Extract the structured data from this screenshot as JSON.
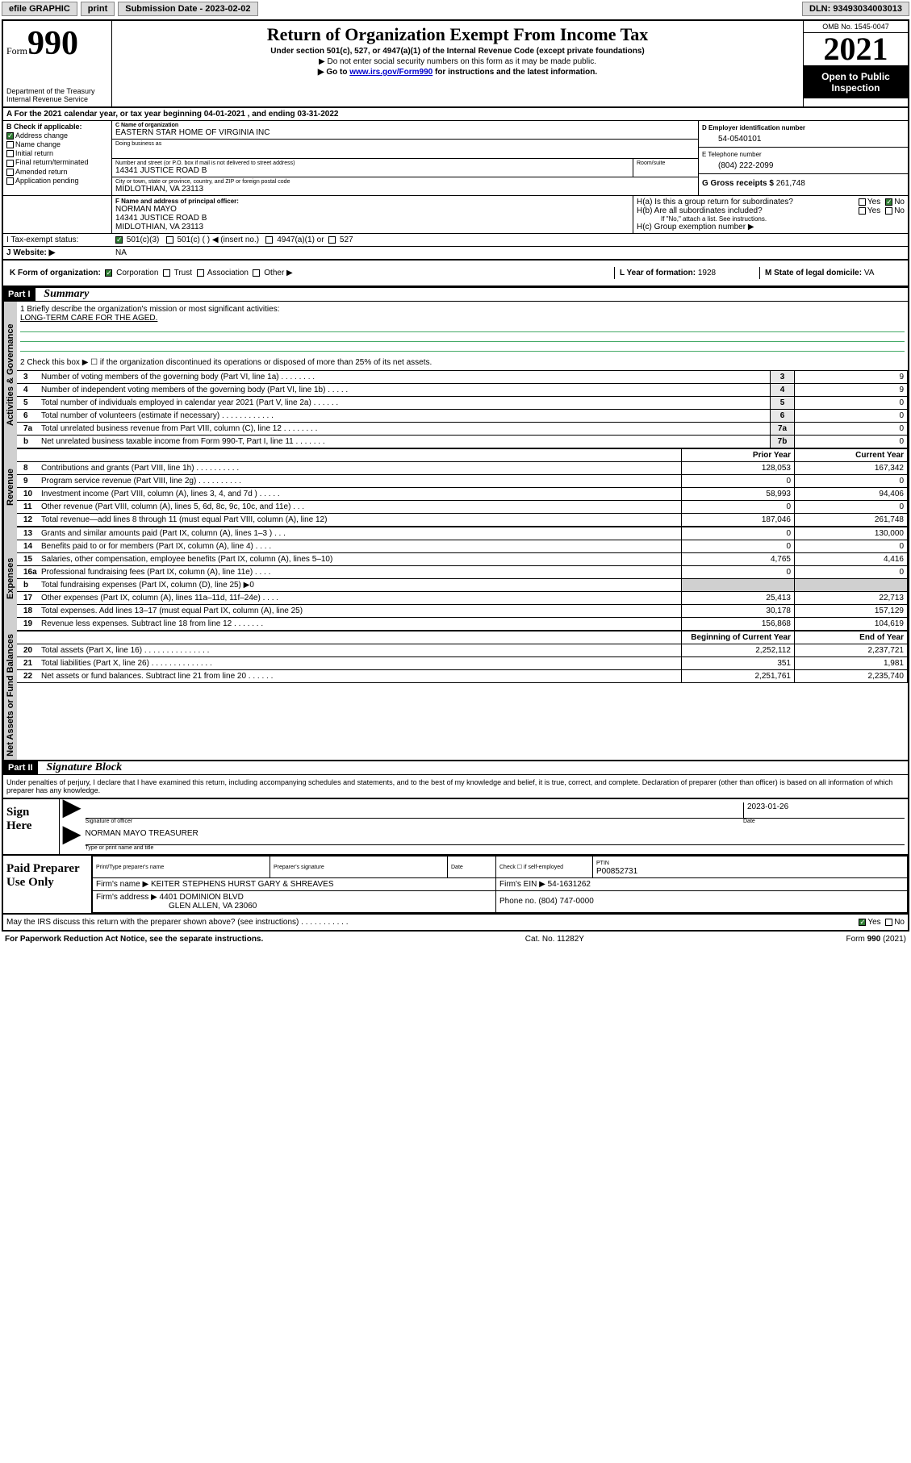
{
  "topbar": {
    "efile_label": "efile GRAPHIC",
    "print_label": "print",
    "submission_label": "Submission Date - 2023-02-02",
    "dln_label": "DLN: 93493034003013"
  },
  "header": {
    "form_prefix": "Form",
    "form_number": "990",
    "dept": "Department of the Treasury",
    "irs": "Internal Revenue Service",
    "title": "Return of Organization Exempt From Income Tax",
    "subtitle": "Under section 501(c), 527, or 4947(a)(1) of the Internal Revenue Code (except private foundations)",
    "note1": "▶ Do not enter social security numbers on this form as it may be made public.",
    "note2_a": "▶ Go to ",
    "note2_link": "www.irs.gov/Form990",
    "note2_b": " for instructions and the latest information.",
    "omb": "OMB No. 1545-0047",
    "year": "2021",
    "open_public": "Open to Public Inspection"
  },
  "line_a": {
    "prefix": "A For the 2021 calendar year, or tax year beginning ",
    "begin": "04-01-2021",
    "mid": " , and ending ",
    "end": "03-31-2022"
  },
  "box_b": {
    "title": "B Check if applicable:",
    "items": [
      {
        "label": "Address change",
        "checked": true
      },
      {
        "label": "Name change",
        "checked": false
      },
      {
        "label": "Initial return",
        "checked": false
      },
      {
        "label": "Final return/terminated",
        "checked": false
      },
      {
        "label": "Amended return",
        "checked": false
      },
      {
        "label": "Application pending",
        "checked": false
      }
    ]
  },
  "box_c": {
    "name_label": "C Name of organization",
    "name": "EASTERN STAR HOME OF VIRGINIA INC",
    "dba_label": "Doing business as",
    "dba": "",
    "street_label": "Number and street (or P.O. box if mail is not delivered to street address)",
    "room_label": "Room/suite",
    "street": "14341 JUSTICE ROAD B",
    "city_label": "City or town, state or province, country, and ZIP or foreign postal code",
    "city": "MIDLOTHIAN, VA  23113"
  },
  "box_d": {
    "label": "D Employer identification number",
    "value": "54-0540101"
  },
  "box_e": {
    "label": "E Telephone number",
    "value": "(804) 222-2099"
  },
  "box_g": {
    "label": "G Gross receipts $",
    "value": "261,748"
  },
  "box_f": {
    "label": "F Name and address of principal officer:",
    "name": "NORMAN MAYO",
    "street": "14341 JUSTICE ROAD B",
    "city": "MIDLOTHIAN, VA  23113"
  },
  "box_h": {
    "a_label": "H(a)  Is this a group return for subordinates?",
    "a_yes": "Yes",
    "a_no": "No",
    "a_val": "No",
    "b_label": "H(b)  Are all subordinates included?",
    "b_note": "If \"No,\" attach a list. See instructions.",
    "c_label": "H(c)  Group exemption number ▶"
  },
  "box_i": {
    "label": "I    Tax-exempt status:",
    "opt1": "501(c)(3)",
    "opt2": "501(c) (   ) ◀ (insert no.)",
    "opt3": "4947(a)(1) or",
    "opt4": "527",
    "checked": "501(c)(3)"
  },
  "box_j": {
    "label": "J   Website: ▶",
    "value": "NA"
  },
  "box_k": {
    "label": "K Form of organization:",
    "opts": [
      "Corporation",
      "Trust",
      "Association",
      "Other ▶"
    ],
    "checked": "Corporation"
  },
  "box_l": {
    "label": "L Year of formation:",
    "value": "1928"
  },
  "box_m": {
    "label": "M State of legal domicile:",
    "value": "VA"
  },
  "part1": {
    "part_label": "Part I",
    "title": "Summary",
    "q1_label": "1   Briefly describe the organization's mission or most significant activities:",
    "q1_value": "LONG-TERM CARE FOR THE AGED.",
    "q2_label": "2   Check this box ▶ ☐  if the organization discontinued its operations or disposed of more than 25% of its net assets.",
    "side_gov": "Activities & Governance",
    "side_rev": "Revenue",
    "side_exp": "Expenses",
    "side_net": "Net Assets or Fund Balances",
    "hdr_prior": "Prior Year",
    "hdr_curr": "Current Year",
    "hdr_beg": "Beginning of Current Year",
    "hdr_end": "End of Year",
    "rows_gov": [
      {
        "n": "3",
        "t": "Number of voting members of the governing body (Part VI, line 1a)   .    .    .    .    .    .    .    .",
        "c": "3",
        "v": "9"
      },
      {
        "n": "4",
        "t": "Number of independent voting members of the governing body (Part VI, line 1b)   .    .    .    .    .",
        "c": "4",
        "v": "9"
      },
      {
        "n": "5",
        "t": "Total number of individuals employed in calendar year 2021 (Part V, line 2a)   .    .    .    .    .    .",
        "c": "5",
        "v": "0"
      },
      {
        "n": "6",
        "t": "Total number of volunteers (estimate if necessary)   .    .    .    .    .    .    .    .    .    .    .    .",
        "c": "6",
        "v": "0"
      },
      {
        "n": "7a",
        "t": "Total unrelated business revenue from Part VIII, column (C), line 12   .    .    .    .    .    .    .    .",
        "c": "7a",
        "v": "0"
      },
      {
        "n": "b",
        "t": "Net unrelated business taxable income from Form 990-T, Part I, line 11   .    .    .    .    .    .    .",
        "c": "7b",
        "v": "0"
      }
    ],
    "rows_rev": [
      {
        "n": "8",
        "t": "Contributions and grants (Part VIII, line 1h)   .    .    .    .    .    .    .    .    .    .",
        "p": "128,053",
        "c": "167,342"
      },
      {
        "n": "9",
        "t": "Program service revenue (Part VIII, line 2g)   .    .    .    .    .    .    .    .    .    .",
        "p": "0",
        "c": "0"
      },
      {
        "n": "10",
        "t": "Investment income (Part VIII, column (A), lines 3, 4, and 7d )   .    .    .    .    .",
        "p": "58,993",
        "c": "94,406"
      },
      {
        "n": "11",
        "t": "Other revenue (Part VIII, column (A), lines 5, 6d, 8c, 9c, 10c, and 11e)  .    .    .",
        "p": "0",
        "c": "0"
      },
      {
        "n": "12",
        "t": "Total revenue—add lines 8 through 11 (must equal Part VIII, column (A), line 12)",
        "p": "187,046",
        "c": "261,748"
      }
    ],
    "rows_exp": [
      {
        "n": "13",
        "t": "Grants and similar amounts paid (Part IX, column (A), lines 1–3 )   .    .    .",
        "p": "0",
        "c": "130,000"
      },
      {
        "n": "14",
        "t": "Benefits paid to or for members (Part IX, column (A), line 4)   .    .    .    .",
        "p": "0",
        "c": "0"
      },
      {
        "n": "15",
        "t": "Salaries, other compensation, employee benefits (Part IX, column (A), lines 5–10)",
        "p": "4,765",
        "c": "4,416"
      },
      {
        "n": "16a",
        "t": "Professional fundraising fees (Part IX, column (A), line 11e)   .    .    .    .",
        "p": "0",
        "c": "0"
      },
      {
        "n": "b",
        "t": "Total fundraising expenses (Part IX, column (D), line 25) ▶0",
        "p": "shade",
        "c": "shade"
      },
      {
        "n": "17",
        "t": "Other expenses (Part IX, column (A), lines 11a–11d, 11f–24e)   .    .    .    .",
        "p": "25,413",
        "c": "22,713"
      },
      {
        "n": "18",
        "t": "Total expenses. Add lines 13–17 (must equal Part IX, column (A), line 25)",
        "p": "30,178",
        "c": "157,129"
      },
      {
        "n": "19",
        "t": "Revenue less expenses. Subtract line 18 from line 12   .    .    .    .    .    .    .",
        "p": "156,868",
        "c": "104,619"
      }
    ],
    "rows_net": [
      {
        "n": "20",
        "t": "Total assets (Part X, line 16)   .    .    .    .    .    .    .    .    .    .    .    .    .    .    .",
        "p": "2,252,112",
        "c": "2,237,721"
      },
      {
        "n": "21",
        "t": "Total liabilities (Part X, line 26)   .    .    .    .    .    .    .    .    .    .    .    .    .    .",
        "p": "351",
        "c": "1,981"
      },
      {
        "n": "22",
        "t": "Net assets or fund balances. Subtract line 21 from line 20   .    .    .    .    .    .",
        "p": "2,251,761",
        "c": "2,235,740"
      }
    ]
  },
  "part2": {
    "part_label": "Part II",
    "title": "Signature Block",
    "decl": "Under penalties of perjury, I declare that I have examined this return, including accompanying schedules and statements, and to the best of my knowledge and belief, it is true, correct, and complete. Declaration of preparer (other than officer) is based on all information of which preparer has any knowledge.",
    "sign_here": "Sign Here",
    "sig_officer_label": "Signature of officer",
    "sig_date_label": "Date",
    "sig_date": "2023-01-26",
    "sig_name": "NORMAN MAYO TREASURER",
    "sig_name_label": "Type or print name and title",
    "paid_prep": "Paid Preparer Use Only",
    "prep_name_label": "Print/Type preparer's name",
    "prep_sig_label": "Preparer's signature",
    "prep_date_label": "Date",
    "prep_check_label": "Check ☐ if self-employed",
    "ptin_label": "PTIN",
    "ptin": "P00852731",
    "firm_name_label": "Firm's name    ▶",
    "firm_name": "KEITER STEPHENS HURST GARY & SHREAVES",
    "firm_ein_label": "Firm's EIN ▶",
    "firm_ein": "54-1631262",
    "firm_addr_label": "Firm's address ▶",
    "firm_addr1": "4401 DOMINION BLVD",
    "firm_addr2": "GLEN ALLEN, VA  23060",
    "phone_label": "Phone no.",
    "phone": "(804) 747-0000",
    "discuss": "May the IRS discuss this return with the preparer shown above? (see instructions)   .    .    .    .    .    .    .    .    .    .    .",
    "discuss_yes": "Yes",
    "discuss_no": "No"
  },
  "footer": {
    "left": "For Paperwork Reduction Act Notice, see the separate instructions.",
    "mid": "Cat. No. 11282Y",
    "right": "Form 990 (2021)"
  }
}
